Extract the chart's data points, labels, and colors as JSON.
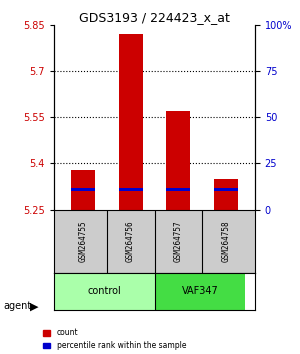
{
  "title": "GDS3193 / 224423_x_at",
  "samples": [
    "GSM264755",
    "GSM264756",
    "GSM264757",
    "GSM264758"
  ],
  "groups": [
    "control",
    "control",
    "VAF347",
    "VAF347"
  ],
  "group_colors": [
    "#90EE90",
    "#90EE90",
    "#32CD32",
    "#32CD32"
  ],
  "group_label_colors": [
    "#90EE90",
    "#32CD32"
  ],
  "group_names": [
    "control",
    "VAF347"
  ],
  "count_values": [
    5.38,
    5.82,
    5.57,
    5.35
  ],
  "percentile_values": [
    5.315,
    5.315,
    5.315,
    5.315
  ],
  "bar_base": 5.25,
  "ylim": [
    5.25,
    5.85
  ],
  "yticks_left": [
    5.25,
    5.4,
    5.55,
    5.7,
    5.85
  ],
  "yticks_right": [
    0,
    25,
    50,
    75,
    100
  ],
  "yticks_right_labels": [
    "0",
    "25",
    "50",
    "75",
    "100%"
  ],
  "left_color": "#cc0000",
  "right_color": "#0000cc",
  "bar_color_red": "#cc0000",
  "bar_color_blue": "#0000cc",
  "bar_width": 0.5,
  "grid_color": "#000000",
  "bg_color": "#ffffff",
  "sample_bg": "#cccccc"
}
